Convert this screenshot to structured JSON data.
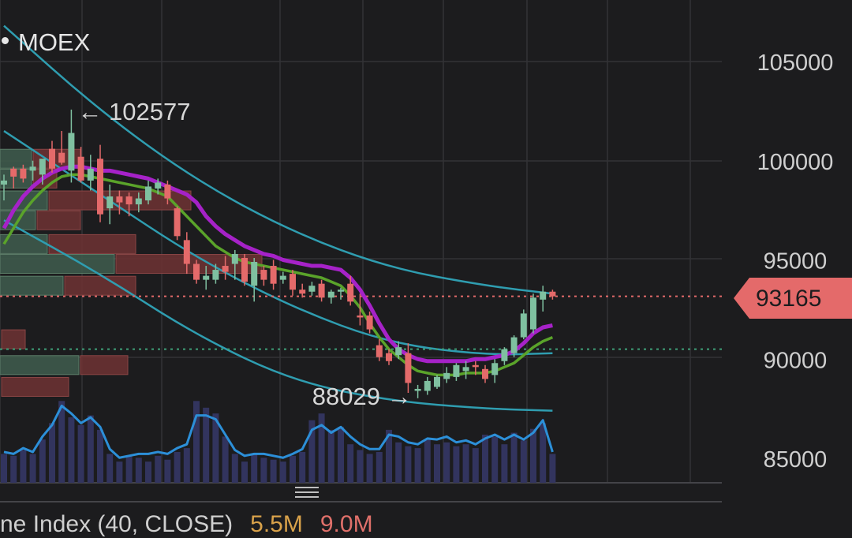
{
  "symbol": {
    "name": "MOEX"
  },
  "price_tag": {
    "value": "93165",
    "color": "#e46a6a"
  },
  "indicator_legend": {
    "name": "ne Index (40, CLOSE)",
    "value1": "5.5M",
    "value2": "9.0M"
  },
  "colors": {
    "up": "#7fc0a0",
    "down": "#e46a6a",
    "doji_grey": "#b9b9a6",
    "ma_fast": "#a622c8",
    "ma_slow": "#5aa32a",
    "channel": "#2f9db0",
    "volume_line": "#2c8fd8",
    "volume_bars": "#32345e",
    "grid": "#333336"
  },
  "chart_data": {
    "type": "candlestick",
    "y_axis": {
      "ticks": [
        105000,
        100000,
        95000,
        90000,
        85000
      ],
      "range": [
        82900,
        107500
      ],
      "side": "right"
    },
    "annotations": [
      {
        "label": "← 102577",
        "value": 102577,
        "kind": "high"
      },
      {
        "label": "88029 →",
        "value": 88029,
        "kind": "low"
      }
    ],
    "reference_lines": [
      {
        "value": 93165,
        "style": "dotted",
        "color": "#e46a6a"
      },
      {
        "value": 90500,
        "style": "dotted",
        "color": "#3fa178"
      }
    ],
    "candles": [
      {
        "o": 99000,
        "h": 99300,
        "l": 98000,
        "c": 98800,
        "dir": "up"
      },
      {
        "o": 99200,
        "h": 99700,
        "l": 98600,
        "c": 99600,
        "dir": "down"
      },
      {
        "o": 99600,
        "h": 99800,
        "l": 98900,
        "c": 99100,
        "dir": "down"
      },
      {
        "o": 99500,
        "h": 100000,
        "l": 99000,
        "c": 99700,
        "dir": "up"
      },
      {
        "o": 99300,
        "h": 99900,
        "l": 98800,
        "c": 100100,
        "dir": "up"
      },
      {
        "o": 100600,
        "h": 101000,
        "l": 99400,
        "c": 99600,
        "dir": "down"
      },
      {
        "o": 100400,
        "h": 101500,
        "l": 99800,
        "c": 99900,
        "dir": "down"
      },
      {
        "o": 99500,
        "h": 102577,
        "l": 98900,
        "c": 101400,
        "dir": "up"
      },
      {
        "o": 100200,
        "h": 100700,
        "l": 98900,
        "c": 99000,
        "dir": "down"
      },
      {
        "o": 99000,
        "h": 100300,
        "l": 98500,
        "c": 99600,
        "dir": "up"
      },
      {
        "o": 100100,
        "h": 100800,
        "l": 96900,
        "c": 97300,
        "dir": "down"
      },
      {
        "o": 98200,
        "h": 98800,
        "l": 96800,
        "c": 97600,
        "dir": "up"
      },
      {
        "o": 98200,
        "h": 98500,
        "l": 97300,
        "c": 97900,
        "dir": "down"
      },
      {
        "o": 98200,
        "h": 98400,
        "l": 97200,
        "c": 97800,
        "dir": "down"
      },
      {
        "o": 97800,
        "h": 98400,
        "l": 97400,
        "c": 98100,
        "dir": "up"
      },
      {
        "o": 98700,
        "h": 99000,
        "l": 97800,
        "c": 98000,
        "dir": "up"
      },
      {
        "o": 98900,
        "h": 99100,
        "l": 98300,
        "c": 98600,
        "dir": "up"
      },
      {
        "o": 98800,
        "h": 99000,
        "l": 97800,
        "c": 98100,
        "dir": "down"
      },
      {
        "o": 97600,
        "h": 97700,
        "l": 96000,
        "c": 96200,
        "dir": "down"
      },
      {
        "o": 96000,
        "h": 96400,
        "l": 94300,
        "c": 94800,
        "dir": "down"
      },
      {
        "o": 94800,
        "h": 95000,
        "l": 93800,
        "c": 94000,
        "dir": "down"
      },
      {
        "o": 94000,
        "h": 94700,
        "l": 93500,
        "c": 94200,
        "dir": "up"
      },
      {
        "o": 94000,
        "h": 94800,
        "l": 93800,
        "c": 94500,
        "dir": "up"
      },
      {
        "o": 94700,
        "h": 95200,
        "l": 94000,
        "c": 94400,
        "dir": "down"
      },
      {
        "o": 94800,
        "h": 95500,
        "l": 94000,
        "c": 95300,
        "dir": "up"
      },
      {
        "o": 95100,
        "h": 95300,
        "l": 93700,
        "c": 93900,
        "dir": "down"
      },
      {
        "o": 93700,
        "h": 95100,
        "l": 92900,
        "c": 94900,
        "dir": "up"
      },
      {
        "o": 94000,
        "h": 94700,
        "l": 93700,
        "c": 94500,
        "dir": "down"
      },
      {
        "o": 94700,
        "h": 95000,
        "l": 93500,
        "c": 93800,
        "dir": "down"
      },
      {
        "o": 94000,
        "h": 94400,
        "l": 93800,
        "c": 94200,
        "dir": "up"
      },
      {
        "o": 94300,
        "h": 94500,
        "l": 93200,
        "c": 93500,
        "dir": "down"
      },
      {
        "o": 93500,
        "h": 93800,
        "l": 93100,
        "c": 93300,
        "dir": "down"
      },
      {
        "o": 93400,
        "h": 93900,
        "l": 93200,
        "c": 93700,
        "dir": "up"
      },
      {
        "o": 93800,
        "h": 94000,
        "l": 92900,
        "c": 93100,
        "dir": "down"
      },
      {
        "o": 93100,
        "h": 93500,
        "l": 92800,
        "c": 93400,
        "dir": "up"
      },
      {
        "o": 93400,
        "h": 93600,
        "l": 93000,
        "c": 93500,
        "dir": "up"
      },
      {
        "o": 93800,
        "h": 94200,
        "l": 92700,
        "c": 92900,
        "dir": "down"
      },
      {
        "o": 92200,
        "h": 93300,
        "l": 91700,
        "c": 92100,
        "dir": "down"
      },
      {
        "o": 92200,
        "h": 92400,
        "l": 91300,
        "c": 91500,
        "dir": "down"
      },
      {
        "o": 90700,
        "h": 91000,
        "l": 89900,
        "c": 90100,
        "dir": "down"
      },
      {
        "o": 90300,
        "h": 90500,
        "l": 89700,
        "c": 89900,
        "dir": "down"
      },
      {
        "o": 90200,
        "h": 90900,
        "l": 90000,
        "c": 90600,
        "dir": "up"
      },
      {
        "o": 90300,
        "h": 90800,
        "l": 88300,
        "c": 88800,
        "dir": "down"
      },
      {
        "o": 88400,
        "h": 88700,
        "l": 88029,
        "c": 88500,
        "dir": "up"
      },
      {
        "o": 88400,
        "h": 89100,
        "l": 88200,
        "c": 88900,
        "dir": "up"
      },
      {
        "o": 88600,
        "h": 89200,
        "l": 88500,
        "c": 89100,
        "dir": "up"
      },
      {
        "o": 89000,
        "h": 89600,
        "l": 88800,
        "c": 89300,
        "dir": "up"
      },
      {
        "o": 89100,
        "h": 89800,
        "l": 88900,
        "c": 89700,
        "dir": "up"
      },
      {
        "o": 89600,
        "h": 89900,
        "l": 89000,
        "c": 89400,
        "dir": "up"
      },
      {
        "o": 89600,
        "h": 89900,
        "l": 89200,
        "c": 89700,
        "dir": "down"
      },
      {
        "o": 89500,
        "h": 89700,
        "l": 88800,
        "c": 89000,
        "dir": "down"
      },
      {
        "o": 89200,
        "h": 90000,
        "l": 88800,
        "c": 89800,
        "dir": "up"
      },
      {
        "o": 89900,
        "h": 90600,
        "l": 89700,
        "c": 90500,
        "dir": "up"
      },
      {
        "o": 90300,
        "h": 91200,
        "l": 90100,
        "c": 91100,
        "dir": "up"
      },
      {
        "o": 91100,
        "h": 92500,
        "l": 91000,
        "c": 92300,
        "dir": "up"
      },
      {
        "o": 91500,
        "h": 93300,
        "l": 91300,
        "c": 93100,
        "dir": "up"
      },
      {
        "o": 93000,
        "h": 93700,
        "l": 92400,
        "c": 93400,
        "dir": "up"
      },
      {
        "o": 93400,
        "h": 93500,
        "l": 93000,
        "c": 93165,
        "dir": "down"
      }
    ],
    "ma_fast": [
      [
        0,
        96600
      ],
      [
        1,
        97500
      ],
      [
        2,
        98200
      ],
      [
        3,
        98700
      ],
      [
        4,
        99100
      ],
      [
        5,
        99400
      ],
      [
        6,
        99600
      ],
      [
        7,
        99700
      ],
      [
        8,
        99700
      ],
      [
        9,
        99600
      ],
      [
        10,
        99500
      ],
      [
        11,
        99500
      ],
      [
        12,
        99400
      ],
      [
        13,
        99300
      ],
      [
        14,
        99200
      ],
      [
        15,
        99100
      ],
      [
        16,
        98900
      ],
      [
        17,
        98700
      ],
      [
        18,
        98500
      ],
      [
        19,
        98300
      ],
      [
        20,
        97900
      ],
      [
        21,
        97200
      ],
      [
        22,
        96700
      ],
      [
        23,
        96300
      ],
      [
        24,
        96000
      ],
      [
        25,
        95700
      ],
      [
        26,
        95500
      ],
      [
        27,
        95300
      ],
      [
        28,
        95200
      ],
      [
        29,
        95000
      ],
      [
        30,
        94900
      ],
      [
        31,
        94800
      ],
      [
        32,
        94700
      ],
      [
        33,
        94700
      ],
      [
        34,
        94600
      ],
      [
        35,
        94500
      ],
      [
        36,
        94100
      ],
      [
        37,
        93500
      ],
      [
        38,
        92700
      ],
      [
        39,
        91800
      ],
      [
        40,
        91000
      ],
      [
        41,
        90500
      ],
      [
        42,
        90200
      ],
      [
        43,
        90000
      ],
      [
        44,
        89900
      ],
      [
        45,
        89900
      ],
      [
        46,
        89900
      ],
      [
        47,
        89900
      ],
      [
        48,
        89900
      ],
      [
        49,
        90000
      ],
      [
        50,
        90000
      ],
      [
        51,
        90100
      ],
      [
        52,
        90200
      ],
      [
        53,
        90400
      ],
      [
        54,
        90800
      ],
      [
        55,
        91300
      ],
      [
        56,
        91600
      ],
      [
        57,
        91700
      ]
    ],
    "ma_slow": [
      [
        0,
        95800
      ],
      [
        1,
        96600
      ],
      [
        2,
        97400
      ],
      [
        3,
        98000
      ],
      [
        4,
        98500
      ],
      [
        5,
        98900
      ],
      [
        6,
        99200
      ],
      [
        7,
        99300
      ],
      [
        8,
        99300
      ],
      [
        9,
        99200
      ],
      [
        10,
        99100
      ],
      [
        11,
        99000
      ],
      [
        12,
        98900
      ],
      [
        13,
        98800
      ],
      [
        14,
        98700
      ],
      [
        15,
        98600
      ],
      [
        16,
        98400
      ],
      [
        17,
        98200
      ],
      [
        18,
        97700
      ],
      [
        19,
        97200
      ],
      [
        20,
        96700
      ],
      [
        21,
        96200
      ],
      [
        22,
        95700
      ],
      [
        23,
        95400
      ],
      [
        24,
        95100
      ],
      [
        25,
        94900
      ],
      [
        26,
        94800
      ],
      [
        27,
        94700
      ],
      [
        28,
        94600
      ],
      [
        29,
        94500
      ],
      [
        30,
        94400
      ],
      [
        31,
        94300
      ],
      [
        32,
        94200
      ],
      [
        33,
        94100
      ],
      [
        34,
        93900
      ],
      [
        35,
        93700
      ],
      [
        36,
        93200
      ],
      [
        37,
        92600
      ],
      [
        38,
        91800
      ],
      [
        39,
        91100
      ],
      [
        40,
        90500
      ],
      [
        41,
        90100
      ],
      [
        42,
        89700
      ],
      [
        43,
        89400
      ],
      [
        44,
        89300
      ],
      [
        45,
        89200
      ],
      [
        46,
        89200
      ],
      [
        47,
        89200
      ],
      [
        48,
        89300
      ],
      [
        49,
        89300
      ],
      [
        50,
        89300
      ],
      [
        51,
        89400
      ],
      [
        52,
        89600
      ],
      [
        53,
        89800
      ],
      [
        54,
        90200
      ],
      [
        55,
        90600
      ],
      [
        56,
        90900
      ],
      [
        57,
        91100
      ]
    ],
    "channel_lines": [
      [
        [
          0,
          106800
        ],
        [
          10,
          102500
        ],
        [
          20,
          99000
        ],
        [
          30,
          96400
        ],
        [
          40,
          94600
        ],
        [
          50,
          93700
        ],
        [
          57,
          93300
        ]
      ],
      [
        [
          0,
          101500
        ],
        [
          10,
          98300
        ],
        [
          20,
          95100
        ],
        [
          30,
          92600
        ],
        [
          40,
          90800
        ],
        [
          50,
          90200
        ],
        [
          57,
          90300
        ]
      ],
      [
        [
          0,
          97000
        ],
        [
          10,
          94300
        ],
        [
          20,
          91200
        ],
        [
          30,
          88900
        ],
        [
          40,
          87900
        ],
        [
          50,
          87500
        ],
        [
          57,
          87400
        ]
      ]
    ],
    "volume_profile": [
      {
        "price": 100100,
        "up": 0.4,
        "down": 0.6
      },
      {
        "price": 99100,
        "up": 0.4,
        "down": 0.3
      },
      {
        "price": 98000,
        "up": 0.6,
        "down": 1.8
      },
      {
        "price": 97000,
        "up": 0.45,
        "down": 0.55
      },
      {
        "price": 95800,
        "up": 0.6,
        "down": 1.1
      },
      {
        "price": 94800,
        "up": 1.45,
        "down": 1.85
      },
      {
        "price": 93700,
        "up": 0.8,
        "down": 0.9
      },
      {
        "price": 91000,
        "up": 0.0,
        "down": 0.3
      },
      {
        "price": 89700,
        "up": 1.0,
        "down": 0.6
      },
      {
        "price": 88600,
        "up": 0.0,
        "down": 0.85
      }
    ],
    "volume": [
      {
        "bar": 0.3,
        "line": 0.32
      },
      {
        "bar": 0.28,
        "line": 0.3
      },
      {
        "bar": 0.34,
        "line": 0.36
      },
      {
        "bar": 0.3,
        "line": 0.32
      },
      {
        "bar": 0.45,
        "line": 0.48
      },
      {
        "bar": 0.62,
        "line": 0.6
      },
      {
        "bar": 0.85,
        "line": 0.8
      },
      {
        "bar": 0.68,
        "line": 0.72
      },
      {
        "bar": 0.6,
        "line": 0.62
      },
      {
        "bar": 0.7,
        "line": 0.68
      },
      {
        "bar": 0.55,
        "line": 0.58
      },
      {
        "bar": 0.3,
        "line": 0.35
      },
      {
        "bar": 0.22,
        "line": 0.26
      },
      {
        "bar": 0.28,
        "line": 0.28
      },
      {
        "bar": 0.26,
        "line": 0.3
      },
      {
        "bar": 0.22,
        "line": 0.3
      },
      {
        "bar": 0.28,
        "line": 0.32
      },
      {
        "bar": 0.24,
        "line": 0.3
      },
      {
        "bar": 0.32,
        "line": 0.36
      },
      {
        "bar": 0.36,
        "line": 0.4
      },
      {
        "bar": 0.85,
        "line": 0.7
      },
      {
        "bar": 0.78,
        "line": 0.7
      },
      {
        "bar": 0.72,
        "line": 0.66
      },
      {
        "bar": 0.48,
        "line": 0.5
      },
      {
        "bar": 0.3,
        "line": 0.34
      },
      {
        "bar": 0.22,
        "line": 0.28
      },
      {
        "bar": 0.3,
        "line": 0.3
      },
      {
        "bar": 0.26,
        "line": 0.3
      },
      {
        "bar": 0.24,
        "line": 0.28
      },
      {
        "bar": 0.22,
        "line": 0.26
      },
      {
        "bar": 0.28,
        "line": 0.3
      },
      {
        "bar": 0.32,
        "line": 0.35
      },
      {
        "bar": 0.65,
        "line": 0.55
      },
      {
        "bar": 0.72,
        "line": 0.6
      },
      {
        "bar": 0.55,
        "line": 0.52
      },
      {
        "bar": 0.58,
        "line": 0.58
      },
      {
        "bar": 0.4,
        "line": 0.48
      },
      {
        "bar": 0.34,
        "line": 0.4
      },
      {
        "bar": 0.3,
        "line": 0.35
      },
      {
        "bar": 0.32,
        "line": 0.35
      },
      {
        "bar": 0.55,
        "line": 0.5
      },
      {
        "bar": 0.42,
        "line": 0.48
      },
      {
        "bar": 0.38,
        "line": 0.42
      },
      {
        "bar": 0.36,
        "line": 0.4
      },
      {
        "bar": 0.45,
        "line": 0.46
      },
      {
        "bar": 0.4,
        "line": 0.45
      },
      {
        "bar": 0.42,
        "line": 0.48
      },
      {
        "bar": 0.38,
        "line": 0.42
      },
      {
        "bar": 0.4,
        "line": 0.44
      },
      {
        "bar": 0.36,
        "line": 0.4
      },
      {
        "bar": 0.5,
        "line": 0.46
      },
      {
        "bar": 0.48,
        "line": 0.5
      },
      {
        "bar": 0.4,
        "line": 0.45
      },
      {
        "bar": 0.52,
        "line": 0.5
      },
      {
        "bar": 0.44,
        "line": 0.45
      },
      {
        "bar": 0.56,
        "line": 0.52
      },
      {
        "bar": 0.62,
        "line": 0.65
      },
      {
        "bar": 0.3,
        "line": 0.32
      }
    ]
  }
}
